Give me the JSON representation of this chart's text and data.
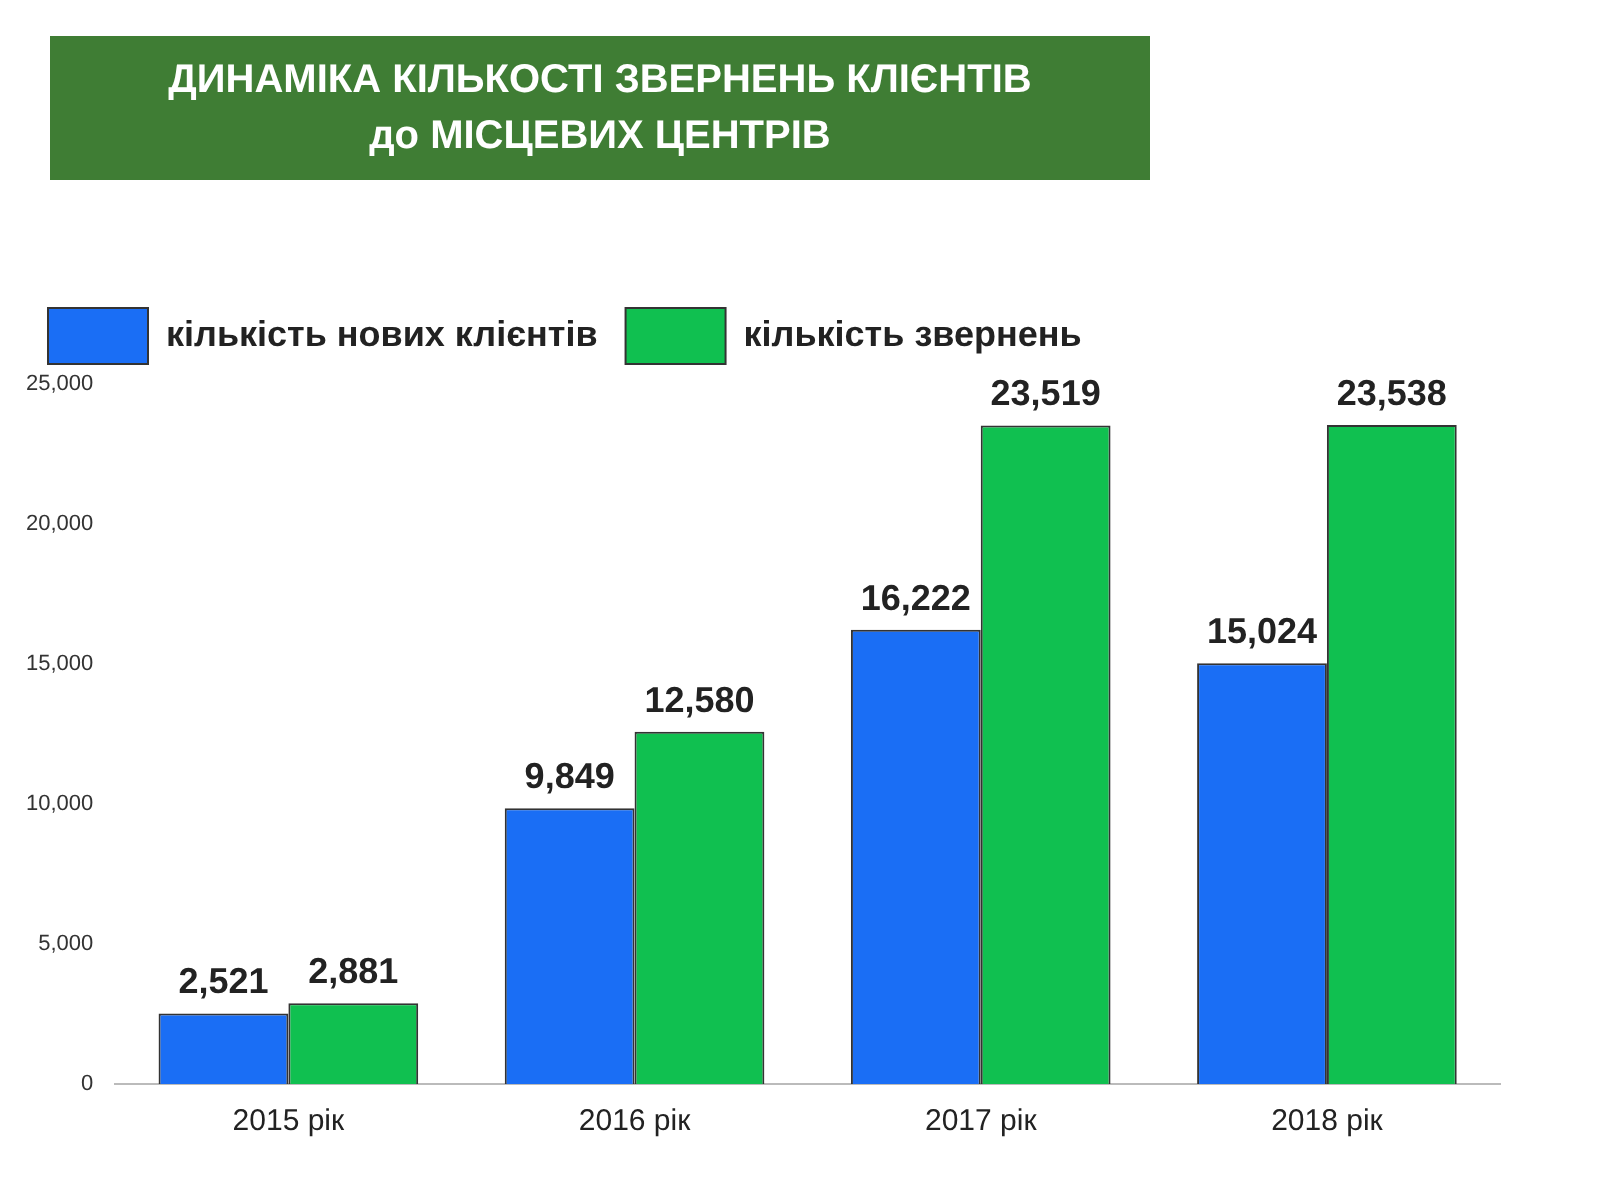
{
  "chart_data": {
    "type": "bar",
    "title": "ДИНАМІКА  КІЛЬКОСТІ ЗВЕРНЕНЬ КЛІЄНТІВ\nдо МІСЦЕВИХ ЦЕНТРІВ",
    "categories": [
      "2015 рік",
      "2016 рік",
      "2017 рік",
      "2018 рік"
    ],
    "series": [
      {
        "name": "кількість нових клієнтів",
        "color": "#1a6ef5",
        "values": [
          2521,
          9849,
          16222,
          15024
        ],
        "value_labels": [
          "2,521",
          "9,849",
          "16,222",
          "15,024"
        ]
      },
      {
        "name": "кількість звернень",
        "color": "#10c050",
        "values": [
          2881,
          12580,
          23519,
          23538
        ],
        "value_labels": [
          "2,881",
          "12,580",
          "23,519",
          "23,538"
        ]
      }
    ],
    "ylim": [
      0,
      25000
    ],
    "yticks": [
      0,
      {
        "value": 5000,
        "label": "5,000"
      },
      {
        "value": 10000,
        "label": "10,000"
      },
      {
        "value": 15000,
        "label": "15,000"
      },
      {
        "value": 20000,
        "label": "20,000"
      },
      {
        "value": 25000,
        "label": "25,000"
      }
    ],
    "grid": false,
    "legend": "top left"
  }
}
